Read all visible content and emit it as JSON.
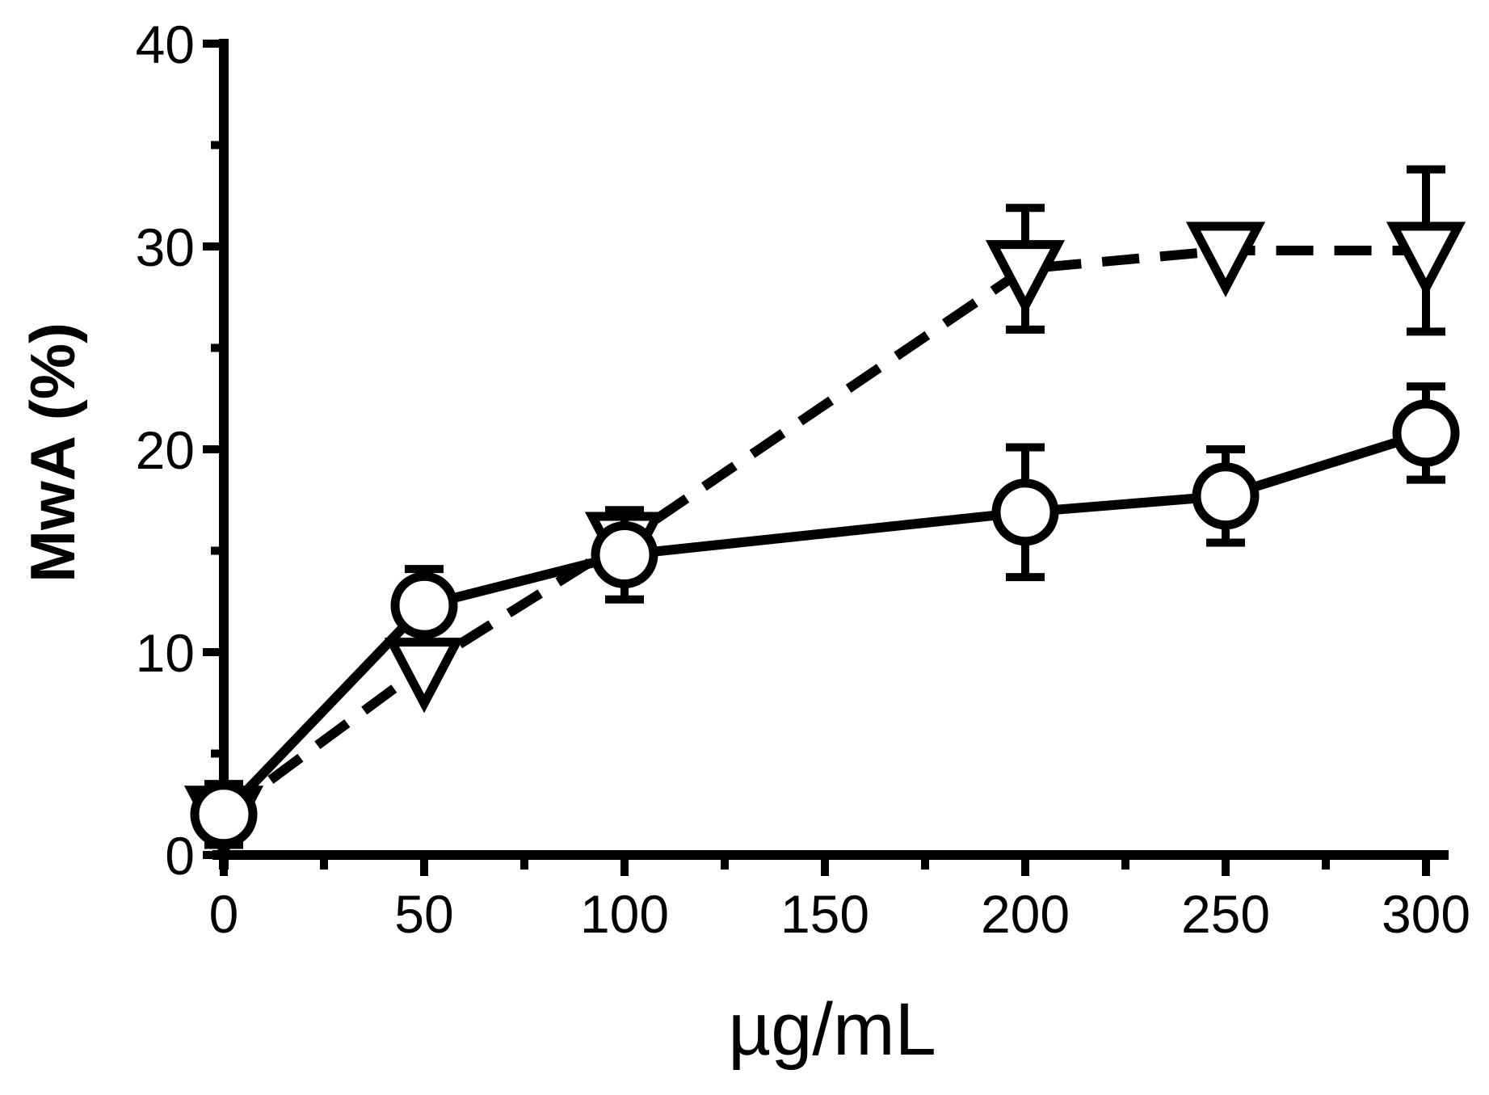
{
  "chart_data": {
    "type": "line",
    "title": "",
    "xlabel": "µg/mL",
    "ylabel": "MwA (%)",
    "xlim": [
      0,
      300
    ],
    "ylim": [
      0,
      40
    ],
    "x_ticks": [
      0,
      50,
      100,
      150,
      200,
      250,
      300
    ],
    "y_ticks": [
      0,
      10,
      20,
      30,
      40
    ],
    "grid": false,
    "legend": "none",
    "series": [
      {
        "marker": "circle",
        "line_style": "solid",
        "color": "#000000",
        "x": [
          0,
          50,
          100,
          200,
          250,
          300
        ],
        "y": [
          2,
          12.3,
          14.8,
          16.9,
          17.7,
          20.8
        ],
        "error": [
          1.5,
          1.8,
          2.2,
          3.2,
          2.3,
          2.3
        ]
      },
      {
        "marker": "triangle-down",
        "line_style": "dashed",
        "color": "#000000",
        "x": [
          0,
          50,
          100,
          200,
          250,
          300
        ],
        "y": [
          2,
          9.3,
          15.5,
          28.9,
          29.8,
          29.8
        ],
        "error": [
          0,
          0,
          0,
          3,
          0,
          4
        ]
      }
    ]
  }
}
